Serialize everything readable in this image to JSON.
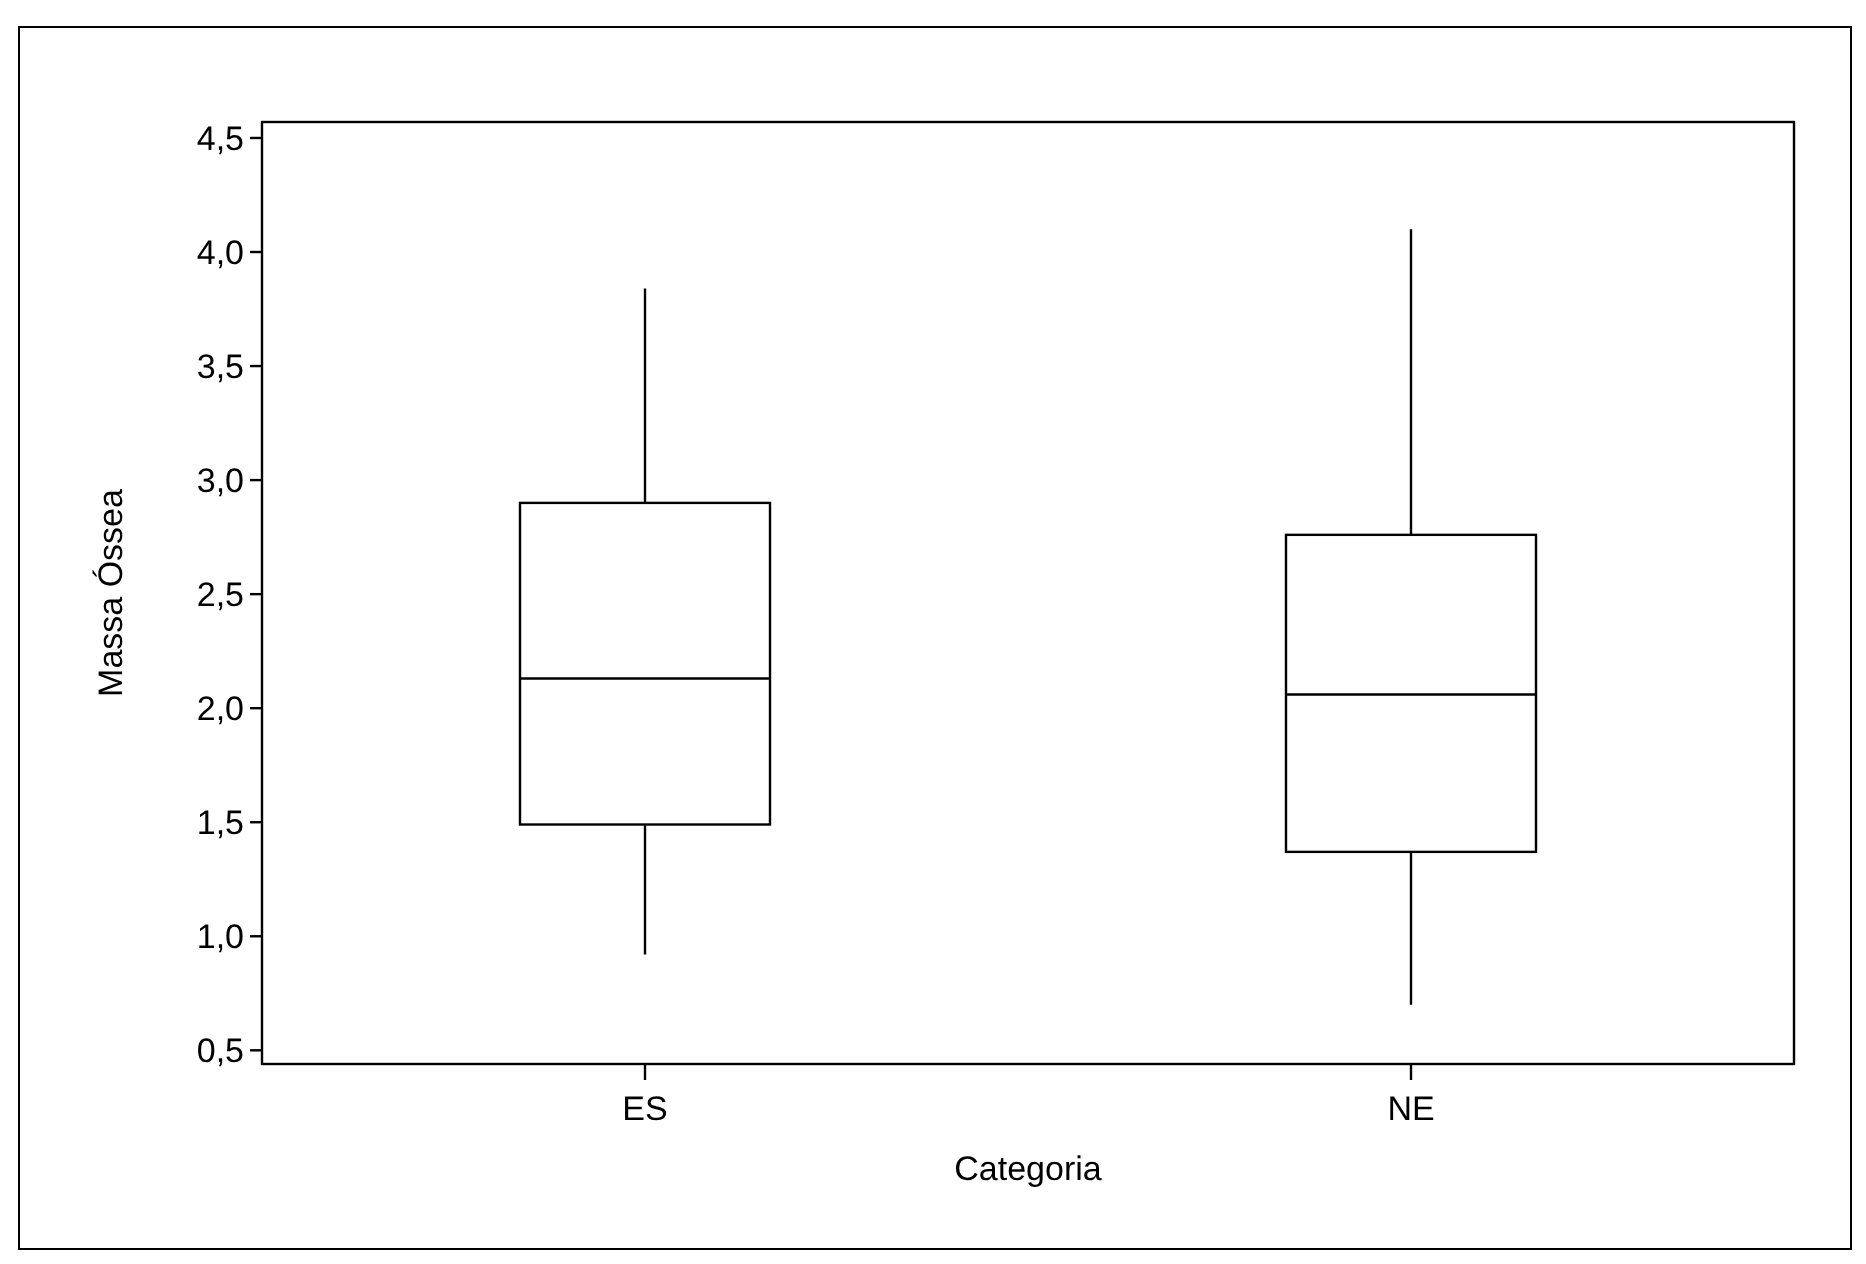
{
  "chart_data": {
    "type": "box",
    "xlabel": "Categoria",
    "ylabel": "Massa Óssea",
    "categories": [
      "ES",
      "NE"
    ],
    "boxes": [
      {
        "low": 0.92,
        "q1": 1.49,
        "median": 2.13,
        "q3": 2.9,
        "high": 3.84
      },
      {
        "low": 0.7,
        "q1": 1.37,
        "median": 2.06,
        "q3": 2.76,
        "high": 4.1
      }
    ],
    "ylim": [
      0.44,
      4.57
    ],
    "yticks": [
      {
        "value": 0.5,
        "label": "0,5"
      },
      {
        "value": 1,
        "label": "1,0"
      },
      {
        "value": 1.5,
        "label": "1,5"
      },
      {
        "value": 2,
        "label": "2,0"
      },
      {
        "value": 2.5,
        "label": "2,5"
      },
      {
        "value": 3,
        "label": "3,0"
      },
      {
        "value": 3.5,
        "label": "3,5"
      },
      {
        "value": 4,
        "label": "4,0"
      },
      {
        "value": 4.5,
        "label": "4,5"
      }
    ],
    "grid": false
  }
}
